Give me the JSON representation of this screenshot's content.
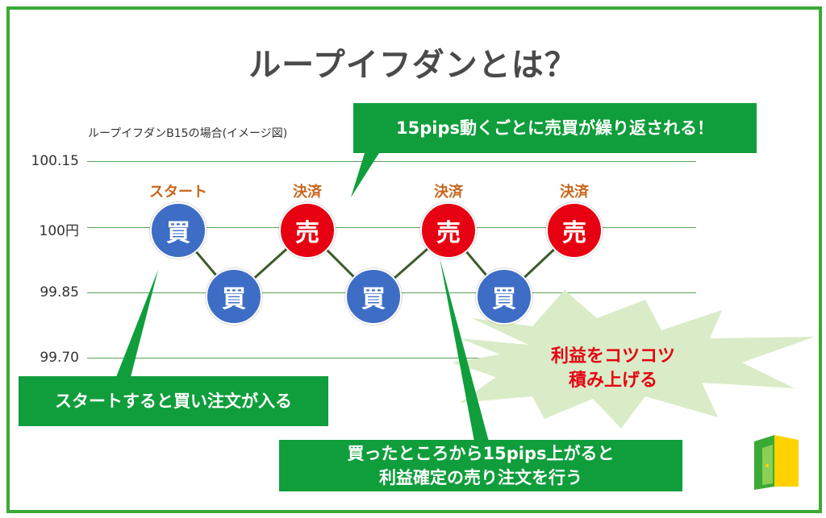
{
  "title": "ループイフダンとは？",
  "subtitle": "ループイフダンB15の場合(イメージ図)",
  "y_labels": [
    "100.15",
    "100円",
    "99.85",
    "99.70"
  ],
  "markers": {
    "start": "スタート",
    "settle1": "決済",
    "settle2": "決済",
    "settle3": "決済"
  },
  "nodes": {
    "buy": "買",
    "sell": "売"
  },
  "callouts": {
    "top": "15pips動くごとに売買が繰り返される！",
    "start": "スタートすると買い注文が入る",
    "profit": "買ったところから15pips上がると\n利益確定の売り注文を行う"
  },
  "burst": {
    "line1": "利益をコツコツ",
    "line2": "積み上げる"
  },
  "colors": {
    "frame": "#3aaa35",
    "buy": "#3d6dc4",
    "sell": "#e60012",
    "callout": "#109d3b",
    "marker": "#c8651b",
    "burst": "#d9ecc7"
  }
}
